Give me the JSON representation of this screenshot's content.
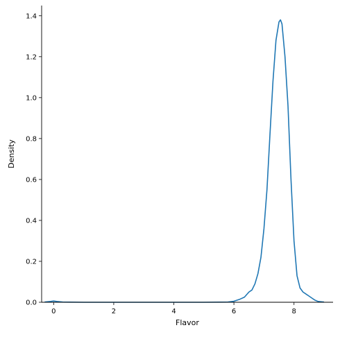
{
  "chart_data": {
    "type": "line",
    "title": "",
    "xlabel": "Flavor",
    "ylabel": "Density",
    "xlim": [
      -0.4,
      9.3
    ],
    "ylim": [
      0,
      1.45
    ],
    "x_ticks": [
      0,
      2,
      4,
      6,
      8
    ],
    "x_tick_labels": [
      "0",
      "2",
      "4",
      "6",
      "8"
    ],
    "y_ticks": [
      0.0,
      0.2,
      0.4,
      0.6,
      0.8,
      1.0,
      1.2,
      1.4
    ],
    "y_tick_labels": [
      "0.0",
      "0.2",
      "0.4",
      "0.6",
      "0.8",
      "1.0",
      "1.2",
      "1.4"
    ],
    "grid": false,
    "line_color": "#1f77b4",
    "series": [
      {
        "x": [
          -0.3,
          -0.1,
          0.0,
          0.1,
          0.3,
          1.0,
          2.0,
          3.0,
          4.0,
          5.0,
          5.8,
          6.0,
          6.2,
          6.35,
          6.5,
          6.6,
          6.7,
          6.8,
          6.9,
          7.0,
          7.1,
          7.2,
          7.3,
          7.4,
          7.5,
          7.55,
          7.6,
          7.7,
          7.8,
          7.9,
          8.0,
          8.1,
          8.2,
          8.3,
          8.4,
          8.5,
          8.6,
          8.7,
          8.8,
          9.0
        ],
        "y": [
          0.001,
          0.004,
          0.006,
          0.004,
          0.001,
          0.0,
          0.0,
          0.0,
          0.0,
          0.0,
          0.001,
          0.005,
          0.015,
          0.025,
          0.05,
          0.06,
          0.09,
          0.14,
          0.22,
          0.36,
          0.55,
          0.82,
          1.08,
          1.28,
          1.37,
          1.38,
          1.36,
          1.2,
          0.96,
          0.6,
          0.3,
          0.13,
          0.07,
          0.05,
          0.04,
          0.03,
          0.02,
          0.01,
          0.004,
          0.001
        ]
      }
    ]
  }
}
